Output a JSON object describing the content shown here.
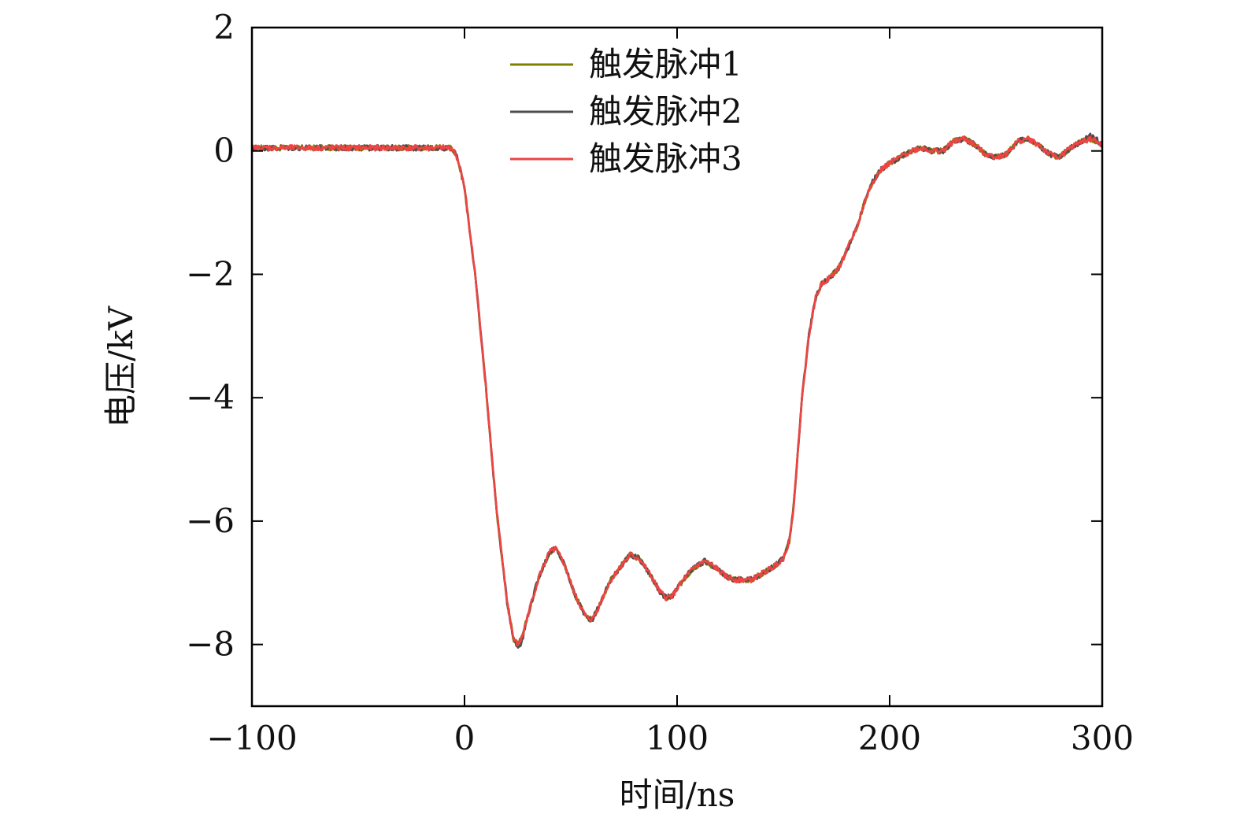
{
  "chart_data": {
    "type": "line",
    "title": "",
    "xlabel": "时间/ns",
    "ylabel": "电压/kV",
    "xlim": [
      -100,
      300
    ],
    "ylim": [
      -9,
      2
    ],
    "xticks": [
      -100,
      0,
      100,
      200,
      300
    ],
    "xtick_labels": [
      "−100",
      "0",
      "100",
      "200",
      "300"
    ],
    "yticks": [
      2,
      0,
      -2,
      -4,
      -6,
      -8
    ],
    "ytick_labels": [
      "2",
      "0",
      "−2",
      "−4",
      "−6",
      "−8"
    ],
    "grid": false,
    "legend_position": "top-center",
    "colors": [
      "#7f7f00",
      "#4d4d4d",
      "#ee4444"
    ],
    "series": [
      {
        "name": "触发脉冲1",
        "points": [
          [
            -100,
            0.05
          ],
          [
            -80,
            0.05
          ],
          [
            -60,
            0.05
          ],
          [
            -40,
            0.05
          ],
          [
            -20,
            0.05
          ],
          [
            -10,
            0.05
          ],
          [
            -6,
            0.05
          ],
          [
            -5,
            0.0
          ],
          [
            -3,
            -0.15
          ],
          [
            0,
            -0.6
          ],
          [
            5,
            -2.0
          ],
          [
            10,
            -3.8
          ],
          [
            15,
            -5.8
          ],
          [
            20,
            -7.3
          ],
          [
            23,
            -7.9
          ],
          [
            25,
            -8.0
          ],
          [
            27,
            -7.9
          ],
          [
            30,
            -7.5
          ],
          [
            35,
            -6.9
          ],
          [
            40,
            -6.5
          ],
          [
            43,
            -6.45
          ],
          [
            47,
            -6.7
          ],
          [
            52,
            -7.2
          ],
          [
            57,
            -7.55
          ],
          [
            60,
            -7.6
          ],
          [
            63,
            -7.4
          ],
          [
            68,
            -7.0
          ],
          [
            73,
            -6.75
          ],
          [
            78,
            -6.55
          ],
          [
            82,
            -6.6
          ],
          [
            87,
            -6.85
          ],
          [
            92,
            -7.15
          ],
          [
            95,
            -7.25
          ],
          [
            98,
            -7.2
          ],
          [
            103,
            -6.95
          ],
          [
            108,
            -6.75
          ],
          [
            113,
            -6.65
          ],
          [
            118,
            -6.75
          ],
          [
            123,
            -6.9
          ],
          [
            128,
            -6.95
          ],
          [
            135,
            -6.95
          ],
          [
            140,
            -6.85
          ],
          [
            145,
            -6.75
          ],
          [
            150,
            -6.6
          ],
          [
            153,
            -6.3
          ],
          [
            155,
            -5.7
          ],
          [
            157,
            -4.8
          ],
          [
            159,
            -3.9
          ],
          [
            162,
            -3.0
          ],
          [
            165,
            -2.4
          ],
          [
            168,
            -2.15
          ],
          [
            172,
            -2.05
          ],
          [
            176,
            -1.9
          ],
          [
            180,
            -1.6
          ],
          [
            185,
            -1.2
          ],
          [
            188,
            -0.85
          ],
          [
            192,
            -0.5
          ],
          [
            196,
            -0.3
          ],
          [
            200,
            -0.2
          ],
          [
            205,
            -0.1
          ],
          [
            210,
            0.0
          ],
          [
            215,
            0.05
          ],
          [
            220,
            0.0
          ],
          [
            225,
            0.0
          ],
          [
            230,
            0.15
          ],
          [
            235,
            0.2
          ],
          [
            240,
            0.1
          ],
          [
            245,
            -0.05
          ],
          [
            250,
            -0.1
          ],
          [
            255,
            -0.05
          ],
          [
            260,
            0.15
          ],
          [
            265,
            0.2
          ],
          [
            270,
            0.1
          ],
          [
            275,
            -0.05
          ],
          [
            280,
            -0.1
          ],
          [
            285,
            0.05
          ],
          [
            290,
            0.15
          ],
          [
            295,
            0.2
          ],
          [
            300,
            0.1
          ]
        ]
      },
      {
        "name": "触发脉冲2",
        "points": [
          [
            -100,
            0.05
          ],
          [
            -80,
            0.05
          ],
          [
            -60,
            0.05
          ],
          [
            -40,
            0.05
          ],
          [
            -20,
            0.05
          ],
          [
            -10,
            0.05
          ],
          [
            -6,
            0.05
          ],
          [
            -5,
            0.0
          ],
          [
            -3,
            -0.15
          ],
          [
            0,
            -0.6
          ],
          [
            5,
            -2.0
          ],
          [
            10,
            -3.8
          ],
          [
            15,
            -5.8
          ],
          [
            20,
            -7.3
          ],
          [
            23,
            -7.9
          ],
          [
            25,
            -8.05
          ],
          [
            27,
            -7.95
          ],
          [
            30,
            -7.5
          ],
          [
            35,
            -6.9
          ],
          [
            40,
            -6.5
          ],
          [
            43,
            -6.45
          ],
          [
            47,
            -6.7
          ],
          [
            52,
            -7.2
          ],
          [
            57,
            -7.55
          ],
          [
            60,
            -7.6
          ],
          [
            63,
            -7.4
          ],
          [
            68,
            -7.0
          ],
          [
            73,
            -6.75
          ],
          [
            78,
            -6.55
          ],
          [
            82,
            -6.6
          ],
          [
            87,
            -6.85
          ],
          [
            92,
            -7.15
          ],
          [
            95,
            -7.25
          ],
          [
            98,
            -7.2
          ],
          [
            103,
            -6.95
          ],
          [
            108,
            -6.75
          ],
          [
            113,
            -6.65
          ],
          [
            118,
            -6.75
          ],
          [
            123,
            -6.9
          ],
          [
            128,
            -6.95
          ],
          [
            135,
            -6.95
          ],
          [
            140,
            -6.85
          ],
          [
            145,
            -6.75
          ],
          [
            150,
            -6.6
          ],
          [
            153,
            -6.3
          ],
          [
            155,
            -5.7
          ],
          [
            157,
            -4.8
          ],
          [
            159,
            -3.9
          ],
          [
            162,
            -3.0
          ],
          [
            165,
            -2.4
          ],
          [
            168,
            -2.15
          ],
          [
            172,
            -2.05
          ],
          [
            176,
            -1.9
          ],
          [
            180,
            -1.6
          ],
          [
            185,
            -1.2
          ],
          [
            188,
            -0.85
          ],
          [
            192,
            -0.5
          ],
          [
            196,
            -0.3
          ],
          [
            200,
            -0.2
          ],
          [
            205,
            -0.1
          ],
          [
            210,
            0.0
          ],
          [
            215,
            0.05
          ],
          [
            220,
            0.0
          ],
          [
            225,
            0.0
          ],
          [
            230,
            0.15
          ],
          [
            235,
            0.2
          ],
          [
            240,
            0.1
          ],
          [
            245,
            -0.05
          ],
          [
            250,
            -0.1
          ],
          [
            255,
            -0.05
          ],
          [
            260,
            0.15
          ],
          [
            265,
            0.2
          ],
          [
            270,
            0.1
          ],
          [
            275,
            -0.05
          ],
          [
            280,
            -0.1
          ],
          [
            285,
            0.05
          ],
          [
            290,
            0.15
          ],
          [
            295,
            0.25
          ],
          [
            300,
            0.1
          ]
        ]
      },
      {
        "name": "触发脉冲3",
        "points": [
          [
            -100,
            0.05
          ],
          [
            -80,
            0.05
          ],
          [
            -60,
            0.05
          ],
          [
            -40,
            0.05
          ],
          [
            -20,
            0.05
          ],
          [
            -10,
            0.05
          ],
          [
            -6,
            0.05
          ],
          [
            -5,
            0.0
          ],
          [
            -3,
            -0.15
          ],
          [
            0,
            -0.6
          ],
          [
            5,
            -2.0
          ],
          [
            10,
            -3.8
          ],
          [
            15,
            -5.8
          ],
          [
            20,
            -7.3
          ],
          [
            23,
            -7.9
          ],
          [
            25,
            -8.0
          ],
          [
            27,
            -7.9
          ],
          [
            30,
            -7.5
          ],
          [
            35,
            -6.9
          ],
          [
            40,
            -6.5
          ],
          [
            43,
            -6.45
          ],
          [
            47,
            -6.7
          ],
          [
            52,
            -7.2
          ],
          [
            57,
            -7.55
          ],
          [
            60,
            -7.6
          ],
          [
            63,
            -7.4
          ],
          [
            68,
            -7.0
          ],
          [
            73,
            -6.75
          ],
          [
            78,
            -6.55
          ],
          [
            82,
            -6.6
          ],
          [
            87,
            -6.85
          ],
          [
            92,
            -7.15
          ],
          [
            95,
            -7.25
          ],
          [
            98,
            -7.2
          ],
          [
            103,
            -6.95
          ],
          [
            108,
            -6.75
          ],
          [
            113,
            -6.65
          ],
          [
            118,
            -6.75
          ],
          [
            123,
            -6.9
          ],
          [
            128,
            -6.95
          ],
          [
            135,
            -6.95
          ],
          [
            140,
            -6.85
          ],
          [
            145,
            -6.75
          ],
          [
            150,
            -6.6
          ],
          [
            153,
            -6.3
          ],
          [
            155,
            -5.7
          ],
          [
            157,
            -4.8
          ],
          [
            159,
            -3.9
          ],
          [
            162,
            -3.0
          ],
          [
            165,
            -2.4
          ],
          [
            168,
            -2.15
          ],
          [
            172,
            -2.05
          ],
          [
            176,
            -1.9
          ],
          [
            180,
            -1.6
          ],
          [
            185,
            -1.2
          ],
          [
            188,
            -0.85
          ],
          [
            192,
            -0.5
          ],
          [
            196,
            -0.3
          ],
          [
            200,
            -0.2
          ],
          [
            205,
            -0.1
          ],
          [
            210,
            0.0
          ],
          [
            215,
            0.05
          ],
          [
            220,
            0.0
          ],
          [
            225,
            0.0
          ],
          [
            230,
            0.15
          ],
          [
            235,
            0.2
          ],
          [
            240,
            0.1
          ],
          [
            245,
            -0.05
          ],
          [
            250,
            -0.1
          ],
          [
            255,
            -0.05
          ],
          [
            260,
            0.15
          ],
          [
            265,
            0.2
          ],
          [
            270,
            0.1
          ],
          [
            275,
            -0.05
          ],
          [
            280,
            -0.1
          ],
          [
            285,
            0.05
          ],
          [
            290,
            0.15
          ],
          [
            295,
            0.2
          ],
          [
            300,
            0.1
          ]
        ]
      }
    ]
  }
}
